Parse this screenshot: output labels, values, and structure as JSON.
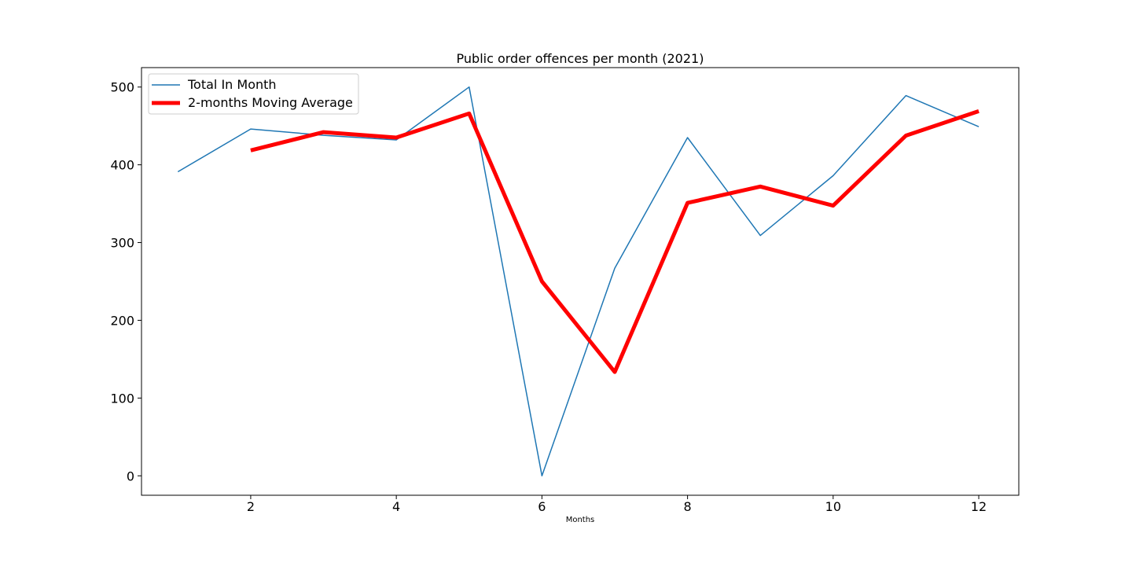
{
  "chart_data": {
    "type": "line",
    "title": "Public order offences per month (2021)",
    "xlabel": "Months",
    "ylabel": "",
    "xlim": [
      0.5,
      12.55
    ],
    "ylim": [
      -25,
      525
    ],
    "xticks": [
      2,
      4,
      6,
      8,
      10,
      12
    ],
    "yticks": [
      0,
      100,
      200,
      300,
      400,
      500
    ],
    "grid": false,
    "legend_position": "top-left",
    "series": [
      {
        "name": "Total In Month",
        "color": "#1f77b4",
        "x": [
          1,
          2,
          3,
          4,
          5,
          6,
          7,
          8,
          9,
          10,
          11,
          12
        ],
        "y": [
          391,
          446,
          438,
          432,
          500,
          0,
          267,
          435,
          309,
          386,
          489,
          449
        ]
      },
      {
        "name": "2-months Moving Average",
        "color": "#ff0000",
        "x": [
          2,
          3,
          4,
          5,
          6,
          7,
          8,
          9,
          10,
          11,
          12
        ],
        "y": [
          418.5,
          442,
          435,
          466,
          250,
          133.5,
          351,
          372,
          347.5,
          437.5,
          469
        ]
      }
    ]
  }
}
